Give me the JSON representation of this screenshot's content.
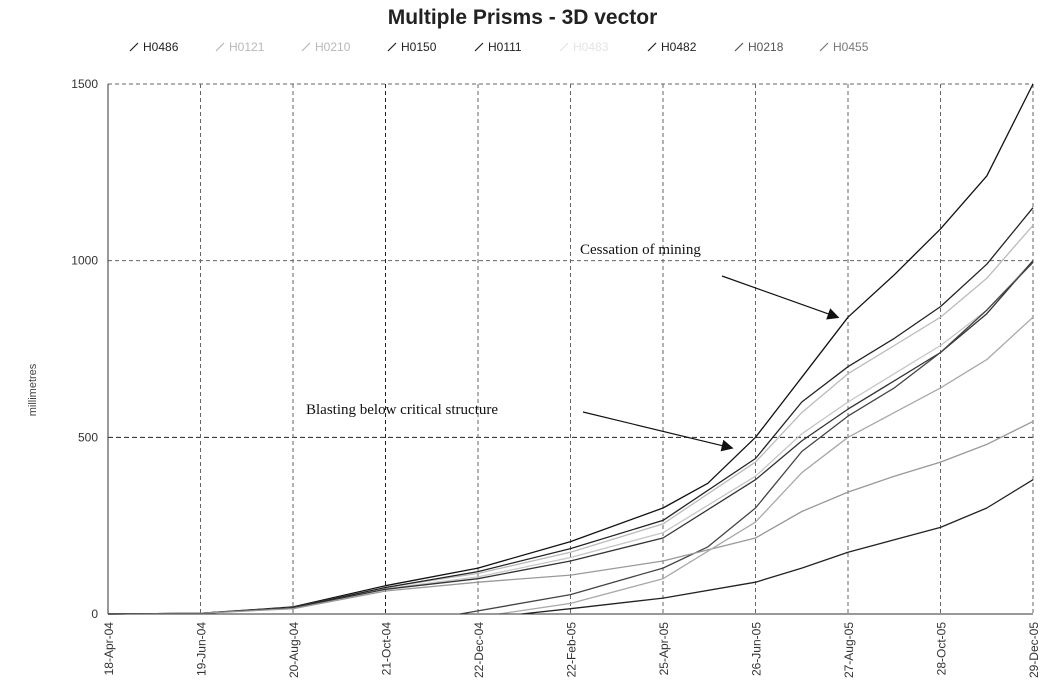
{
  "chart_data": {
    "type": "line",
    "title": "Multiple Prisms - 3D vector",
    "ylabel": "millimetres",
    "xlabel": "",
    "ylim": [
      0,
      1500
    ],
    "xlim": [
      "2004-04-18",
      "2005-12-29"
    ],
    "y_ticks": [
      0,
      500,
      1000,
      1500
    ],
    "x_ticks": [
      "18-Apr-04",
      "19-Jun-04",
      "20-Aug-04",
      "21-Oct-04",
      "22-Dec-04",
      "22-Feb-05",
      "25-Apr-05",
      "26-Jun-05",
      "27-Aug-05",
      "28-Oct-05",
      "29-Dec-05"
    ],
    "grid": true,
    "legend_position": "top",
    "series": [
      {
        "name": "H0486",
        "color": "#111111",
        "x": [
          "2004-04-18",
          "2004-06-19",
          "2004-08-20",
          "2004-10-21",
          "2004-12-22",
          "2005-02-22",
          "2005-04-25",
          "2005-05-25",
          "2005-06-26",
          "2005-07-27",
          "2005-08-27",
          "2005-09-27",
          "2005-10-28",
          "2005-11-28",
          "2005-12-29"
        ],
        "y": [
          0,
          2,
          20,
          80,
          130,
          205,
          300,
          370,
          500,
          670,
          840,
          960,
          1090,
          1240,
          1500
        ]
      },
      {
        "name": "H0121",
        "color": "#bbbbbb",
        "x": [
          "2004-04-18",
          "2004-06-19",
          "2004-08-20",
          "2004-10-21",
          "2004-12-22",
          "2005-02-22",
          "2005-04-25",
          "2005-06-26",
          "2005-07-27",
          "2005-08-27",
          "2005-09-27",
          "2005-10-28",
          "2005-11-28",
          "2005-12-29"
        ],
        "y": [
          0,
          2,
          18,
          75,
          115,
          175,
          255,
          430,
          570,
          680,
          760,
          840,
          950,
          1100
        ]
      },
      {
        "name": "H0210",
        "color": "#c6c6c6",
        "x": [
          "2004-04-18",
          "2004-06-19",
          "2004-08-20",
          "2004-10-21",
          "2004-12-22",
          "2005-02-22",
          "2005-04-25",
          "2005-06-26",
          "2005-07-27",
          "2005-08-27",
          "2005-09-27",
          "2005-10-28",
          "2005-11-28",
          "2005-12-29"
        ],
        "y": [
          0,
          2,
          18,
          72,
          105,
          160,
          230,
          390,
          510,
          600,
          680,
          760,
          860,
          1000
        ]
      },
      {
        "name": "H0150",
        "color": "#222222",
        "x": [
          "2004-04-18",
          "2004-06-19",
          "2004-08-20",
          "2004-10-21",
          "2004-12-22",
          "2005-02-22",
          "2005-04-25",
          "2005-06-26",
          "2005-07-27",
          "2005-08-27",
          "2005-09-27",
          "2005-10-28",
          "2005-11-28",
          "2005-12-29"
        ],
        "y": [
          0,
          2,
          18,
          75,
          120,
          185,
          265,
          440,
          600,
          700,
          780,
          870,
          990,
          1150
        ]
      },
      {
        "name": "H0111",
        "color": "#333333",
        "x": [
          "2004-04-18",
          "2004-06-19",
          "2004-08-20",
          "2004-10-21",
          "2004-12-22",
          "2005-02-22",
          "2005-04-25",
          "2005-06-26",
          "2005-07-27",
          "2005-08-27",
          "2005-09-27",
          "2005-10-28",
          "2005-11-28",
          "2005-12-29"
        ],
        "y": [
          0,
          2,
          18,
          70,
          100,
          150,
          215,
          380,
          490,
          580,
          660,
          740,
          850,
          1000
        ]
      },
      {
        "name": "H0482",
        "color": "#444444",
        "x": [
          "2004-12-10",
          "2005-02-22",
          "2005-04-25",
          "2005-05-25",
          "2005-06-26",
          "2005-07-27",
          "2005-08-27",
          "2005-09-27",
          "2005-10-28",
          "2005-11-28",
          "2005-12-29"
        ],
        "y": [
          0,
          55,
          130,
          190,
          300,
          460,
          560,
          640,
          740,
          860,
          995
        ]
      },
      {
        "name": "H0218",
        "color": "#999999",
        "x": [
          "2004-04-18",
          "2004-06-19",
          "2004-08-20",
          "2004-10-21",
          "2004-12-22",
          "2005-02-22",
          "2005-04-25",
          "2005-06-26",
          "2005-07-27",
          "2005-08-27",
          "2005-09-27",
          "2005-10-28",
          "2005-11-28",
          "2005-12-29"
        ],
        "y": [
          0,
          2,
          15,
          65,
          90,
          110,
          150,
          215,
          290,
          345,
          390,
          430,
          480,
          545
        ]
      },
      {
        "name": "H0455",
        "color": "#a8a8a8",
        "x": [
          "2005-01-05",
          "2005-02-22",
          "2005-04-25",
          "2005-06-26",
          "2005-07-27",
          "2005-08-27",
          "2005-09-27",
          "2005-10-28",
          "2005-11-28",
          "2005-12-29"
        ],
        "y": [
          0,
          30,
          100,
          260,
          400,
          500,
          570,
          640,
          720,
          840
        ]
      },
      {
        "name": "H0483",
        "color": "#222222",
        "x": [
          "2005-01-20",
          "2005-02-22",
          "2005-04-25",
          "2005-06-26",
          "2005-07-27",
          "2005-08-27",
          "2005-09-27",
          "2005-10-28",
          "2005-11-28",
          "2005-12-29"
        ],
        "y": [
          0,
          15,
          45,
          90,
          130,
          175,
          210,
          245,
          300,
          380
        ]
      }
    ],
    "legend_entries": [
      {
        "name": "H0486",
        "color": "#222222"
      },
      {
        "name": "H0121",
        "color": "#b8b8b8"
      },
      {
        "name": "H0210",
        "color": "#b8b8b8"
      },
      {
        "name": "H0150",
        "color": "#222222"
      },
      {
        "name": "H0111",
        "color": "#222222"
      },
      {
        "name": "H0483",
        "color": "#e4e4e4"
      },
      {
        "name": "H0482",
        "color": "#222222"
      },
      {
        "name": "H0218",
        "color": "#555555"
      },
      {
        "name": "H0455",
        "color": "#777777"
      }
    ],
    "annotations": [
      {
        "text": "Cessation of mining",
        "arrow_to_date": "2005-08-20",
        "arrow_to_y": 840
      },
      {
        "text": "Blasting below critical structure",
        "arrow_to_date": "2005-06-10",
        "arrow_to_y": 470
      }
    ]
  }
}
